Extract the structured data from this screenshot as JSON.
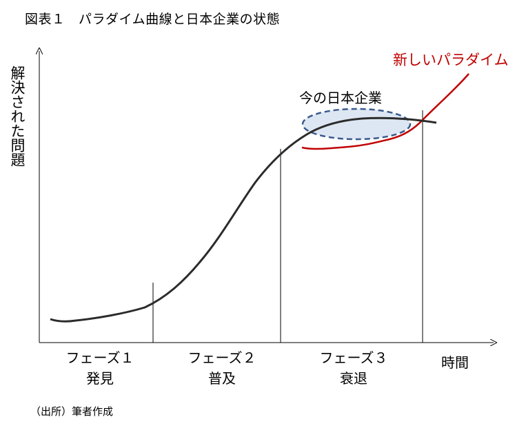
{
  "figure_title": "図表１　パラダイム曲線と日本企業の状態",
  "y_axis_label": "解決された問題",
  "x_axis_label": "時間",
  "phases": [
    {
      "name": "フェーズ１",
      "label": "発見"
    },
    {
      "name": "フェーズ２",
      "label": "普及"
    },
    {
      "name": "フェーズ３",
      "label": "衰退"
    }
  ],
  "annotations": {
    "current": "今の日本企業",
    "new_paradigm": "新しいパラダイム"
  },
  "source_note": "（出所）筆者作成",
  "colors": {
    "main_curve": "#2b2b2b",
    "new_paradigm_curve": "#c00000",
    "new_paradigm_text": "#c00000",
    "ellipse_stroke": "#3a5a8c",
    "ellipse_fill": "#dde7f3"
  }
}
